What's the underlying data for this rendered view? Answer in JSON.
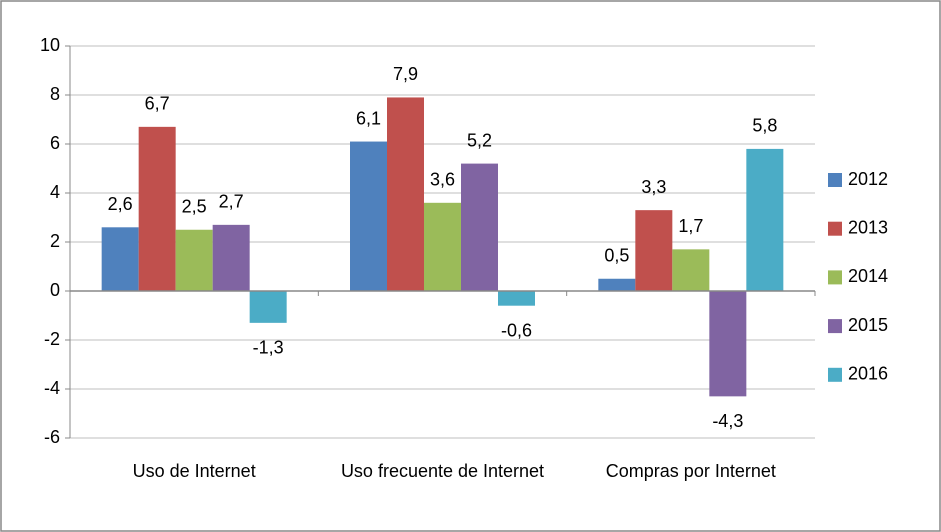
{
  "chart_data": {
    "type": "bar",
    "categories": [
      "Uso de Internet",
      "Uso frecuente de Internet",
      "Compras por Internet"
    ],
    "series": [
      {
        "name": "2012",
        "color": "#4f81bd",
        "values": [
          2.6,
          6.1,
          0.5
        ],
        "value_labels": [
          "2,6",
          "6,1",
          "0,5"
        ]
      },
      {
        "name": "2013",
        "color": "#c0504d",
        "values": [
          6.7,
          7.9,
          3.3
        ],
        "value_labels": [
          "6,7",
          "7,9",
          "3,3"
        ]
      },
      {
        "name": "2014",
        "color": "#9bbb59",
        "values": [
          2.5,
          3.6,
          1.7
        ],
        "value_labels": [
          "2,5",
          "3,6",
          "1,7"
        ]
      },
      {
        "name": "2015",
        "color": "#8064a2",
        "values": [
          2.7,
          5.2,
          -4.3
        ],
        "value_labels": [
          "2,7",
          "5,2",
          "-4,3"
        ]
      },
      {
        "name": "2016",
        "color": "#4bacc6",
        "values": [
          -1.3,
          -0.6,
          5.8
        ],
        "value_labels": [
          "-1,3",
          "-0,6",
          "5,8"
        ]
      }
    ],
    "ylim": [
      -6,
      10
    ],
    "yticks": [
      -6,
      -4,
      -2,
      0,
      2,
      4,
      6,
      8,
      10
    ],
    "grid": true,
    "legend": "right"
  }
}
